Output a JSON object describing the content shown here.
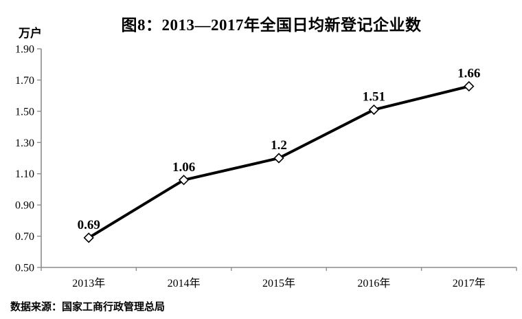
{
  "page": {
    "title": "图8：2013—2017年全国日均新登记企业数",
    "y_unit_label": "万户",
    "source_note": "数据来源：国家工商行政管理总局"
  },
  "chart_data": {
    "type": "line",
    "title": "图8：2013—2017年全国日均新登记企业数",
    "ylabel": "万户",
    "xlabel": "",
    "categories": [
      "2013年",
      "2014年",
      "2015年",
      "2016年",
      "2017年"
    ],
    "values": [
      0.69,
      1.06,
      1.2,
      1.51,
      1.66
    ],
    "point_labels": [
      "0.69",
      "1.06",
      "1.2",
      "1.51",
      "1.66"
    ],
    "ylim": [
      0.5,
      1.9
    ],
    "ytick_step": 0.2,
    "ytick_labels": [
      "1.90",
      "1.70",
      "1.50",
      "1.30",
      "1.10",
      "0.90",
      "0.70",
      "0.50"
    ],
    "grid": false,
    "legend": "none",
    "marker": "open-diamond",
    "line_color": "#000000",
    "marker_fill": "#ffffff",
    "label_color": "#000000",
    "axis_color": "#8c8c8c",
    "tick_label_color": "#000000"
  }
}
